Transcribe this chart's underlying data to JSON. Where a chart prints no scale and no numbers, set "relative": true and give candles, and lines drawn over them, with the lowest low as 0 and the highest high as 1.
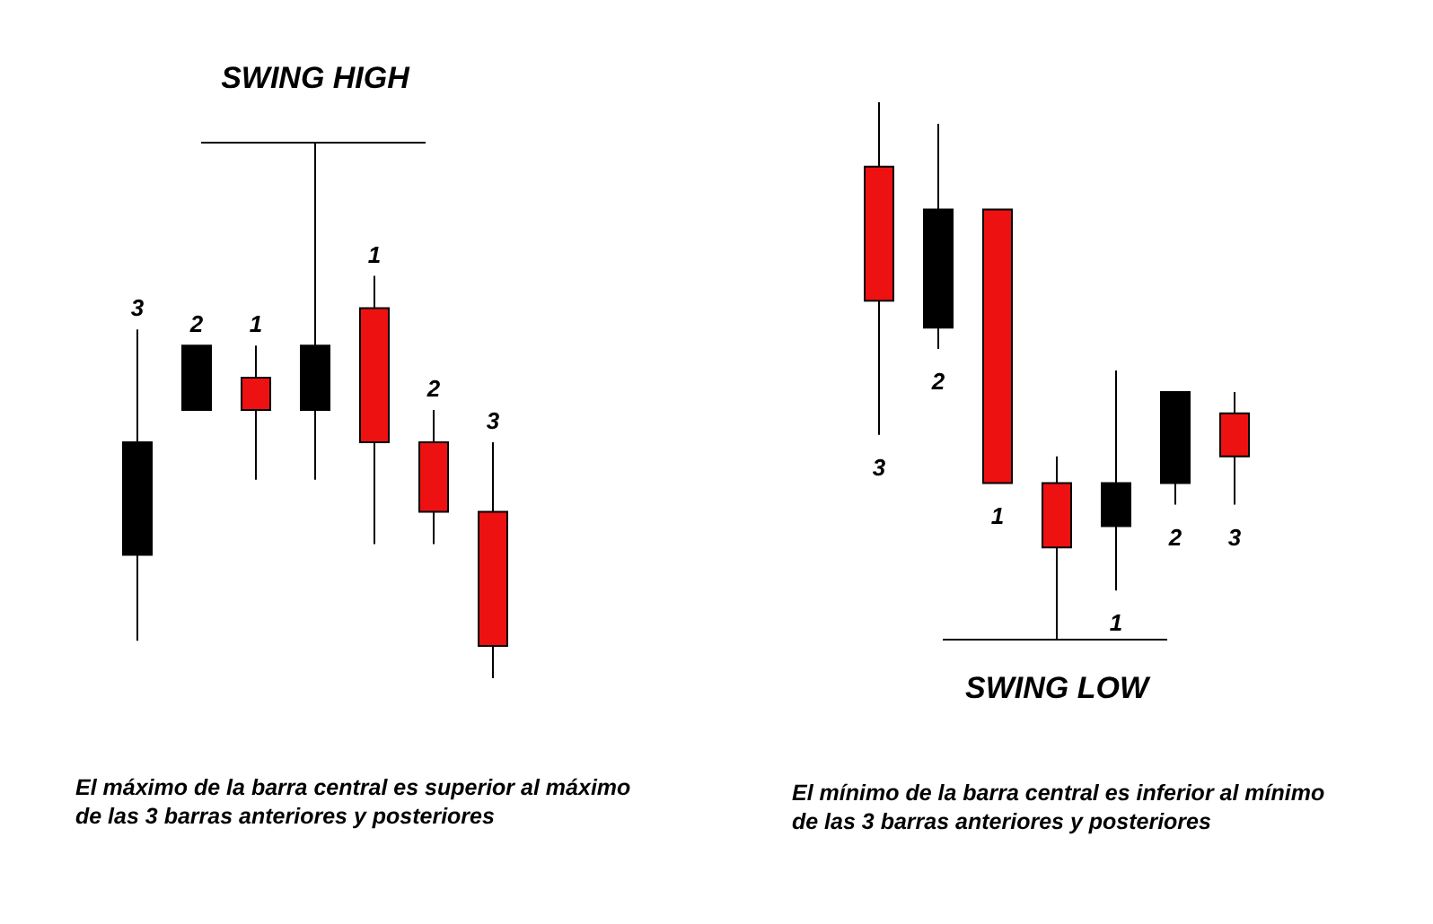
{
  "chart_data": [
    {
      "type": "candlestick",
      "title": "SWING HIGH",
      "relative": true,
      "categories": [
        "3",
        "2",
        "1",
        null,
        "1",
        "2",
        "3"
      ],
      "ohlc": [
        [
          0.23,
          0.65,
          0.07,
          0.44
        ],
        [
          0.5,
          0.62,
          0.5,
          0.62
        ],
        [
          0.56,
          0.62,
          0.37,
          0.5
        ],
        [
          0.5,
          1,
          0.37,
          0.62
        ],
        [
          0.69,
          0.75,
          0.25,
          0.44
        ],
        [
          0.44,
          0.5,
          0.25,
          0.31
        ],
        [
          0.31,
          0.44,
          0,
          0.06
        ]
      ],
      "colors": [
        "#000000",
        "#000000",
        "#ee1111",
        "#000000",
        "#ee1111",
        "#ee1111",
        "#ee1111"
      ],
      "annotations": [
        "El máximo de la barra central es superior al máximo de las 3 barras anteriores y posteriores"
      ]
    },
    {
      "type": "candlestick",
      "title": "SWING LOW",
      "relative": true,
      "categories": [
        "3",
        "2",
        "1",
        null,
        "1",
        "2",
        "3"
      ],
      "ohlc": [
        [
          0.88,
          1,
          0.38,
          0.63
        ],
        [
          0.58,
          0.96,
          0.54,
          0.8
        ],
        [
          0.8,
          0.8,
          0.29,
          0.29
        ],
        [
          0.29,
          0.34,
          0,
          0.17
        ],
        [
          0.21,
          0.5,
          0.09,
          0.29
        ],
        [
          0.29,
          0.46,
          0.25,
          0.46
        ],
        [
          0.42,
          0.46,
          0.25,
          0.34
        ]
      ],
      "colors": [
        "#ee1111",
        "#000000",
        "#ee1111",
        "#ee1111",
        "#000000",
        "#000000",
        "#ee1111"
      ],
      "annotations": [
        "El mínimo de la barra central es inferior al mínimo de las 3 barras anteriores y posteriores"
      ]
    }
  ]
}
